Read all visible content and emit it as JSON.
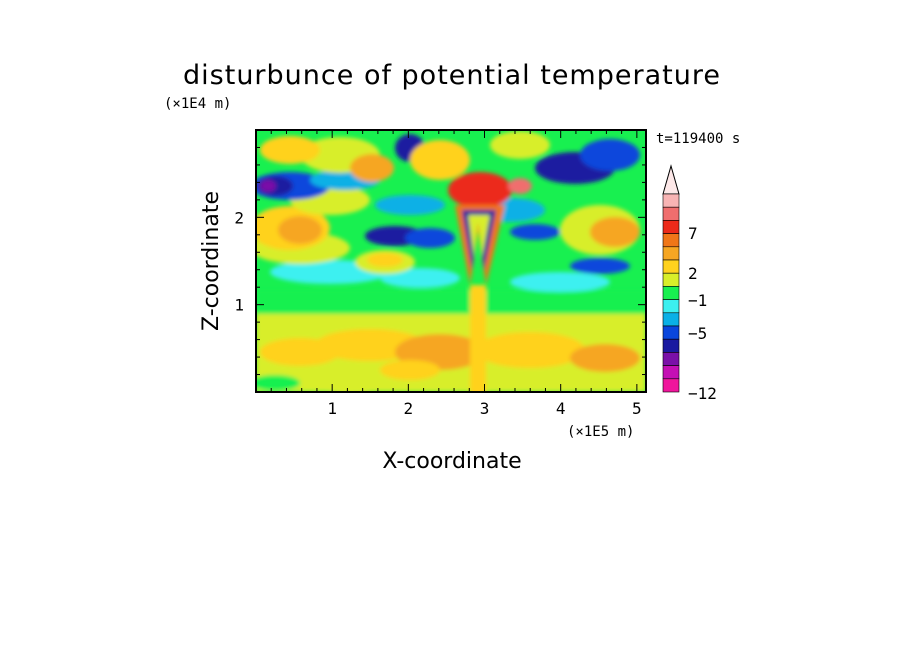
{
  "chart_data": {
    "type": "heatmap",
    "title": "disturbunce of potential temperature",
    "xlabel": "X-coordinate",
    "ylabel": "Z-coordinate",
    "x_unit": "(×1E5 m)",
    "y_unit": "(×1E4 m)",
    "time_label": "t=119400 s",
    "xlim": [
      0,
      5.12
    ],
    "ylim": [
      0,
      3.0
    ],
    "x_ticks": [
      1,
      2,
      3,
      4,
      5
    ],
    "y_ticks": [
      1,
      2
    ],
    "colorbar": {
      "tick_values": [
        7,
        2,
        -1,
        -5,
        -12
      ],
      "tick_labels": [
        "7",
        "2",
        "−1",
        "−5",
        "−12"
      ],
      "colors": [
        "#f0169c",
        "#c40fb4",
        "#7a10a8",
        "#1a1aa0",
        "#0a46dc",
        "#0ab0e6",
        "#3cf0f0",
        "#18f050",
        "#d8ee2a",
        "#ffd21e",
        "#f6a623",
        "#f07618",
        "#ec2a1a",
        "#f06e6e",
        "#f8b4b4"
      ]
    },
    "field_summary": [
      {
        "region": "surface layer 0-0.9",
        "level": "weak positive (0 to 2)"
      },
      {
        "region": "mid layer 0.9-1.5",
        "level": "near zero (-1 to 0)"
      },
      {
        "region": "upper layer 1.5-3.0",
        "level": "alternating -5 to 7"
      },
      {
        "region": "wave near x=2.9, z=1.3-2.8",
        "level": "strong banded -5 to 7"
      },
      {
        "region": "max near x=2.9, z=2.3",
        "level": "about 7"
      },
      {
        "region": "min near x=0.1, z=2.4",
        "level": "about -7"
      }
    ]
  }
}
